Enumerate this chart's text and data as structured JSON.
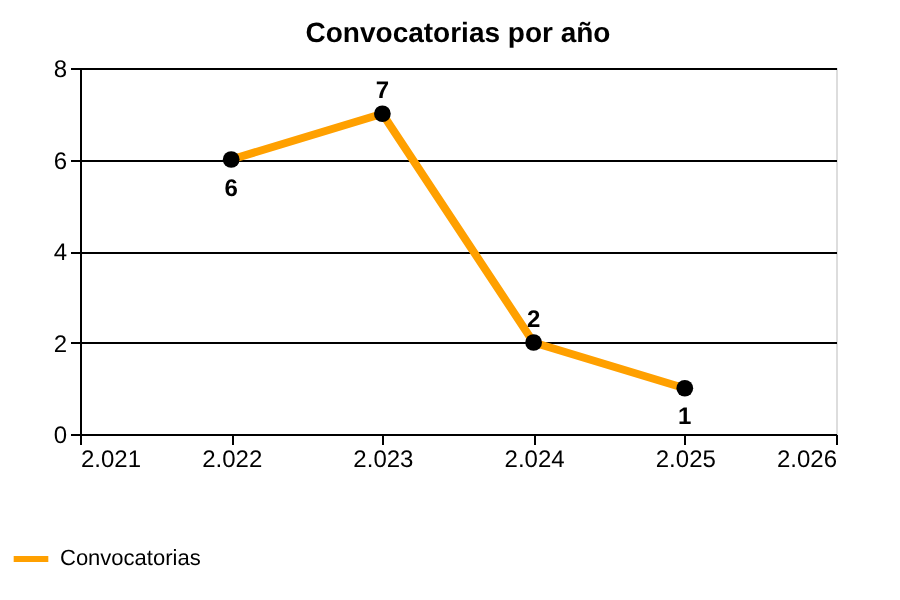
{
  "chart_data": {
    "type": "line",
    "title": "Convocatorias por año",
    "x": [
      2022,
      2023,
      2024,
      2025
    ],
    "series": [
      {
        "name": "Convocatorias",
        "color": "#ffa000",
        "values": [
          6,
          7,
          2,
          1
        ]
      }
    ],
    "xlim": [
      2021,
      2026
    ],
    "xticks": [
      {
        "value": 2021,
        "label": "2.021"
      },
      {
        "value": 2022,
        "label": "2.022"
      },
      {
        "value": 2023,
        "label": "2.023"
      },
      {
        "value": 2024,
        "label": "2.024"
      },
      {
        "value": 2025,
        "label": "2.025"
      },
      {
        "value": 2026,
        "label": "2.026"
      }
    ],
    "ylim": [
      0,
      8
    ],
    "yticks": [
      0,
      2,
      4,
      6,
      8
    ],
    "grid": "y",
    "legend": "bottom left",
    "marker": "circle",
    "line_style": "solid",
    "data_labels": true
  }
}
